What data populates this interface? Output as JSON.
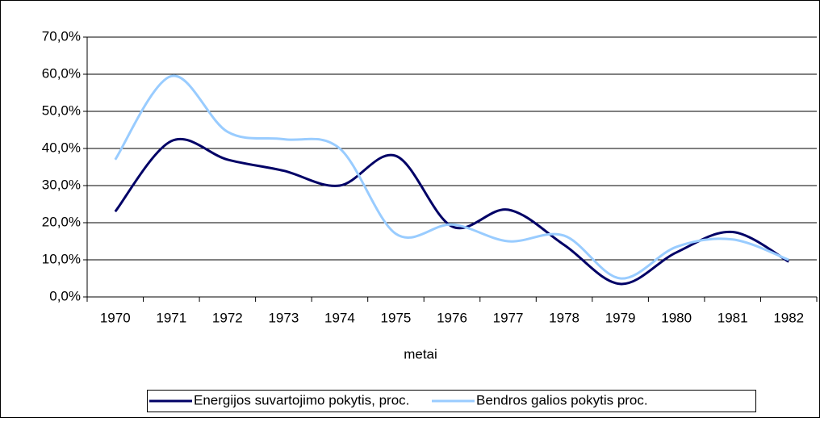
{
  "chart_data": {
    "type": "line",
    "x_label": "metai",
    "categories": [
      "1970",
      "1971",
      "1972",
      "1973",
      "1974",
      "1975",
      "1976",
      "1977",
      "1978",
      "1979",
      "1980",
      "1981",
      "1982"
    ],
    "series": [
      {
        "name": "Energijos suvartojimo pokytis, proc.",
        "color": "#000066",
        "values": [
          23,
          42,
          37,
          34,
          30,
          38,
          19,
          23.5,
          14,
          3.5,
          12,
          17.5,
          9.5
        ]
      },
      {
        "name": "Bendros galios pokytis proc.",
        "color": "#99ccff",
        "values": [
          37,
          59.5,
          44.5,
          42.5,
          40,
          17,
          19.5,
          15,
          16.5,
          5,
          13.5,
          15.5,
          10
        ]
      }
    ],
    "ylim": [
      0,
      70
    ],
    "yticks": [
      {
        "value": 0,
        "label": "0,0%"
      },
      {
        "value": 10,
        "label": "10,0%"
      },
      {
        "value": 20,
        "label": "20,0%"
      },
      {
        "value": 30,
        "label": "30,0%"
      },
      {
        "value": 40,
        "label": "40,0%"
      },
      {
        "value": 50,
        "label": "50,0%"
      },
      {
        "value": 60,
        "label": "60,0%"
      },
      {
        "value": 70,
        "label": "70,0%"
      }
    ],
    "grid": true,
    "legend": "bottom"
  }
}
